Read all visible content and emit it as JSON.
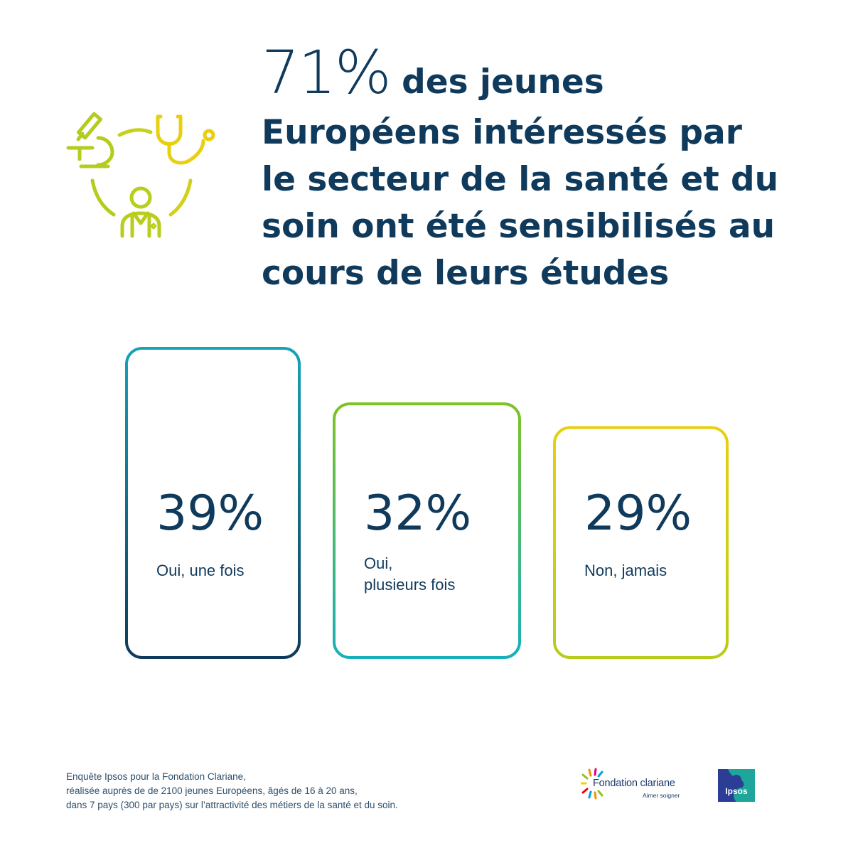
{
  "headline": {
    "big_number": "71%",
    "lines": [
      " des jeunes",
      "Européens intéressés par",
      "le secteur de la santé et du",
      "soin ont été sensibilisés au",
      "cours de leurs études"
    ]
  },
  "chart_data": {
    "type": "bar",
    "categories": [
      "Oui, une fois",
      "Oui, plusieurs fois",
      "Non, jamais"
    ],
    "category_lines": [
      [
        "Oui, une fois"
      ],
      [
        "Oui,",
        "plusieurs fois"
      ],
      [
        "Non, jamais"
      ]
    ],
    "values": [
      39,
      32,
      29
    ],
    "value_labels": [
      "39%",
      "32%",
      "29%"
    ],
    "unit": "%",
    "title": "",
    "xlabel": "",
    "ylabel": "",
    "ylim": [
      0,
      39
    ],
    "grid": false,
    "legend": "none"
  },
  "footnote": [
    "Enquête Ipsos pour la Fondation Clariane,",
    "réalisée auprès de de 2100 jeunes Européens, âgés de 16 à 20 ans,",
    "dans 7 pays (300 par pays) sur l’attractivité des métiers de la santé et du soin."
  ],
  "logos": {
    "fondation": "Fondation clariane",
    "fondation_tagline": "Aimer soigner",
    "ipsos": "Ipsos"
  },
  "icons": [
    "microscope-icon",
    "stethoscope-icon",
    "doctor-icon"
  ],
  "colors": {
    "text": "#0f3a5c",
    "lime": "#b5cc1f",
    "yellow": "#e8cf10",
    "teal": "#17a3b6",
    "navy": "#0f3a5c",
    "green": "#7fc324",
    "ipsos": "#2b3d94"
  }
}
